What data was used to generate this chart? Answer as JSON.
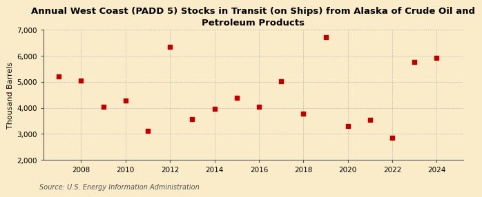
{
  "title": "Annual West Coast (PADD 5) Stocks in Transit (on Ships) from Alaska of Crude Oil and\nPetroleum Products",
  "ylabel": "Thousand Barrels",
  "source": "Source: U.S. Energy Information Administration",
  "years": [
    2007,
    2008,
    2009,
    2010,
    2011,
    2012,
    2013,
    2014,
    2015,
    2016,
    2017,
    2018,
    2019,
    2020,
    2021,
    2022,
    2023,
    2024
  ],
  "values": [
    5220,
    5060,
    4030,
    4280,
    3120,
    6340,
    3560,
    3960,
    4380,
    4050,
    5010,
    3780,
    6720,
    3290,
    3530,
    2850,
    5750,
    5920
  ],
  "marker_color": "#c00000",
  "background_color": "#faecc8",
  "grid_color": "#aaaaaa",
  "ylim": [
    2000,
    7000
  ],
  "yticks": [
    2000,
    3000,
    4000,
    5000,
    6000,
    7000
  ],
  "xticks": [
    2008,
    2010,
    2012,
    2014,
    2016,
    2018,
    2020,
    2022,
    2024
  ],
  "xlim_left": 2006.3,
  "xlim_right": 2025.2,
  "title_fontsize": 9.5,
  "label_fontsize": 8,
  "tick_fontsize": 7.5,
  "source_fontsize": 7.0
}
